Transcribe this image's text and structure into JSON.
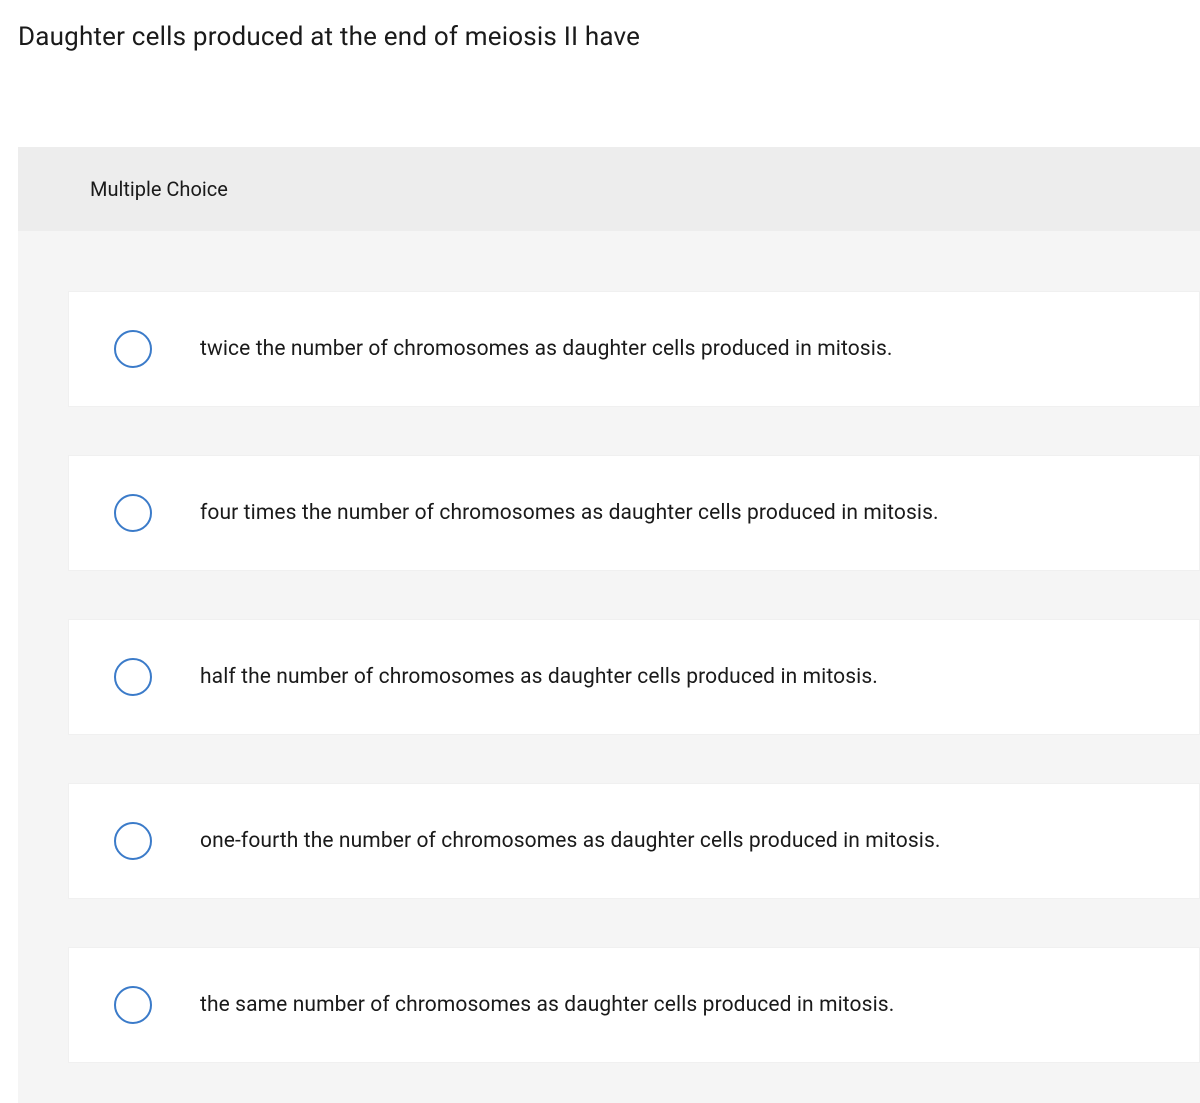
{
  "question": {
    "text": "Daughter cells produced at the end of meiosis II have",
    "text_color": "#1a1a1a",
    "font_size": 26
  },
  "panel": {
    "header_label": "Multiple Choice",
    "header_bg": "#ededed",
    "body_bg": "#f5f5f5"
  },
  "options": [
    {
      "label": "twice the number of chromosomes as daughter cells produced in mitosis."
    },
    {
      "label": "four times the number of chromosomes as daughter cells produced in mitosis."
    },
    {
      "label": "half the number of chromosomes as daughter cells produced in mitosis."
    },
    {
      "label": "one-fourth the number of chromosomes as daughter cells produced in mitosis."
    },
    {
      "label": "the same number of chromosomes as daughter cells produced in mitosis."
    }
  ],
  "radio_style": {
    "border_color": "#3b7bc9",
    "size": 38,
    "border_width": 2
  },
  "option_card_style": {
    "bg": "#ffffff",
    "border_color": "#f0f0f0",
    "text_color": "#1a1a1a",
    "font_size": 21
  }
}
